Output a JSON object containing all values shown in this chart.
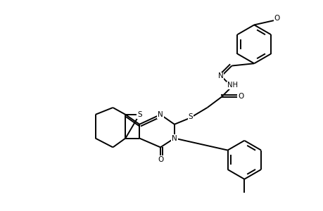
{
  "bg_color": "#ffffff",
  "line_color": "#000000",
  "line_width": 1.4,
  "figsize": [
    4.6,
    3.0
  ],
  "dpi": 100,
  "xlim": [
    0,
    10
  ],
  "ylim": [
    0,
    6.5
  ]
}
